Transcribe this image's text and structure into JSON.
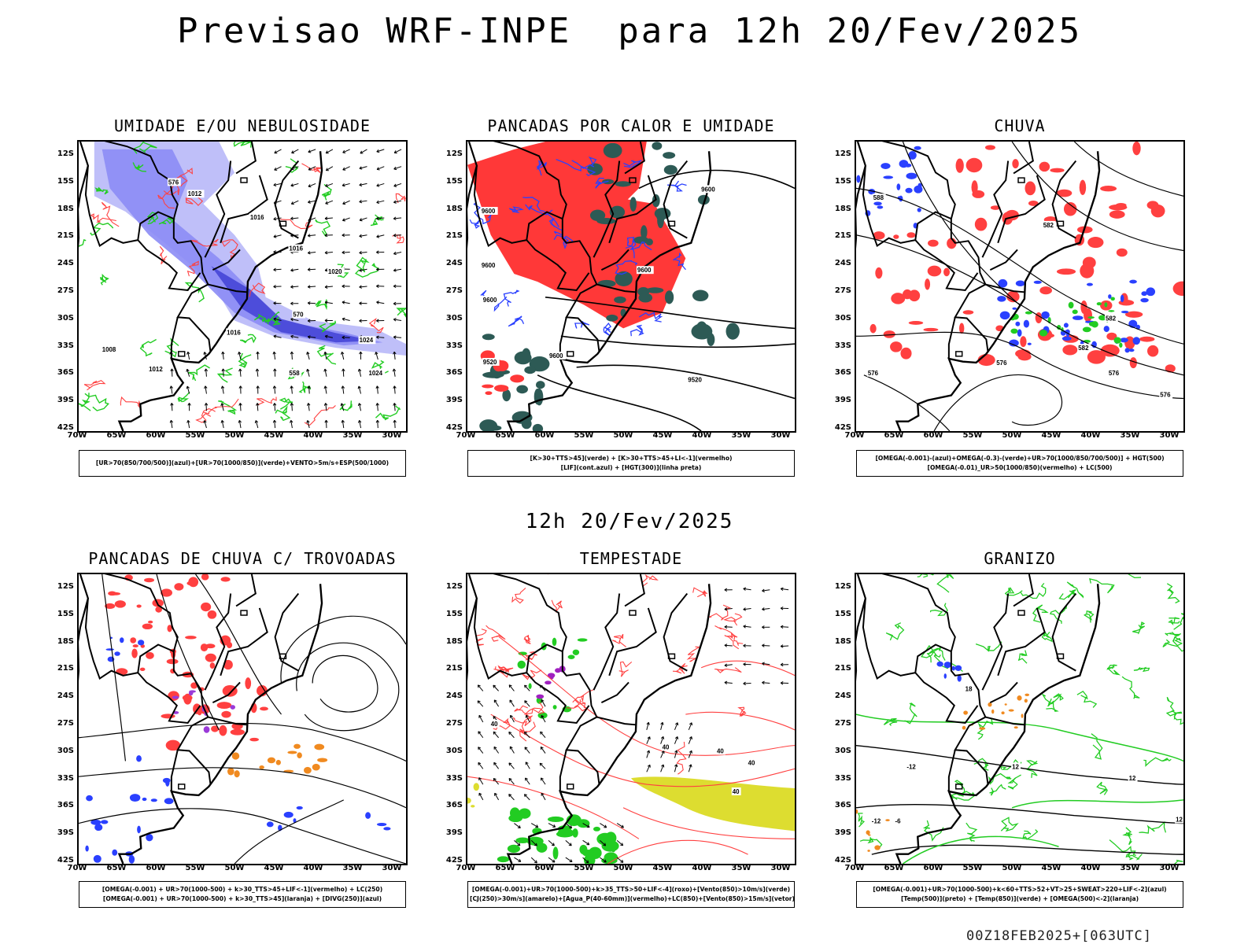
{
  "title": "Previsao WRF-INPE  para 12h 20/Fev/2025",
  "mid_title": "12h 20/Fev/2025",
  "footer": "00Z18FEB2025+[063UTC]",
  "lat_ticks": [
    "12S",
    "15S",
    "18S",
    "21S",
    "24S",
    "27S",
    "30S",
    "33S",
    "36S",
    "39S",
    "42S"
  ],
  "lon_ticks": [
    "70W",
    "65W",
    "60W",
    "55W",
    "50W",
    "45W",
    "40W",
    "35W",
    "30W"
  ],
  "panels": [
    {
      "title": "UMIDADE E/OU NEBULOSIDADE",
      "legend": [
        "[UR>70(850/700/500)](azul)+[UR>70(1000/850)](verde)+VENTO>5m/s+ESP(500/1000)"
      ],
      "contour_labels": [
        "1012",
        "1016",
        "1016",
        "1020",
        "1024",
        "1024",
        "1008",
        "1012",
        "576",
        "570",
        "558",
        "1016"
      ],
      "colors": {
        "fill1": "#8c8cf5",
        "fill2": "#b4b4f8",
        "fill3": "#4a4ad8",
        "green": "#22cc22",
        "red": "#ff4040",
        "black": "#000000"
      }
    },
    {
      "title": "PANCADAS POR CALOR E UMIDADE",
      "legend": [
        "[K>30+TTS>45](verde) + [K>30+TTS>45+LI<-1](vermelho)",
        "[LIF](cont.azul) + [HGT(300)](linha preta)"
      ],
      "contour_labels": [
        "9600",
        "9600",
        "9600",
        "9600",
        "9520",
        "9520",
        "9600",
        "9600"
      ],
      "colors": {
        "red": "#ff3838",
        "dark": "#2d5a55",
        "blue": "#2a40ff",
        "black": "#000000"
      }
    },
    {
      "title": "CHUVA",
      "legend": [
        "[OMEGA(-0.001)-(azul)+OMEGA(-0.3)-(verde)+UR>70(1000/850/700/500)] + HGT(500)",
        "[OMEGA(-0.01)_UR>50(1000/850)(vermelho) + LC(500)"
      ],
      "contour_labels": [
        "582",
        "576",
        "576",
        "582",
        "576",
        "576",
        "588",
        "582"
      ],
      "colors": {
        "red": "#ff4040",
        "blue": "#2a40ff",
        "green": "#22cc22",
        "black": "#000000"
      }
    },
    {
      "title": "PANCADAS DE CHUVA C/ TROVOADAS",
      "legend": [
        "[OMEGA(-0.001) + UR>70(1000-500) + k>30_TTS>45+LIF<-1](vermelho) + LC(250)",
        "[OMEGA(-0.001) + UR>70(1000-500) + k>30_TTS>45](laranja) + [DIVG(250)](azul)"
      ],
      "contour_labels": [],
      "colors": {
        "red": "#ff4040",
        "orange": "#f08a20",
        "blue": "#2a40ff",
        "purple": "#9a3ad8",
        "black": "#000000"
      }
    },
    {
      "title": "TEMPESTADE",
      "legend": [
        "[OMEGA(-0.001)+UR>70(1000-500)+k>35_TTS>50+LIF<-4](roxo)+[Vento(850)>10m/s](verde)",
        "[CJ(250)>30m/s](amarelo)+[Agua_P(40-60mm)](vermelho)+LC(850)+[Vento(850)>15m/s](vetor)"
      ],
      "contour_labels": [
        "40",
        "40",
        "40",
        "40",
        "40"
      ],
      "colors": {
        "red": "#ff4040",
        "yellow": "#dddd30",
        "green": "#22cc22",
        "purple": "#a020c0",
        "black": "#000000"
      }
    },
    {
      "title": "GRANIZO",
      "legend": [
        "[OMEGA(-0.001)+UR>70(1000-500)+k<60+TTS>52+VT>25+SWEAT>220+LIF<-2](azul)",
        "[Temp(500)](preto) + [Temp(850)](verde) + [OMEGA(500)<-2](laranja)"
      ],
      "contour_labels": [
        "-12",
        "-12",
        "-6",
        "12",
        "18",
        "12",
        "12"
      ],
      "colors": {
        "green": "#22cc22",
        "orange": "#f08a20",
        "blue": "#2a40ff",
        "black": "#000000"
      }
    }
  ]
}
